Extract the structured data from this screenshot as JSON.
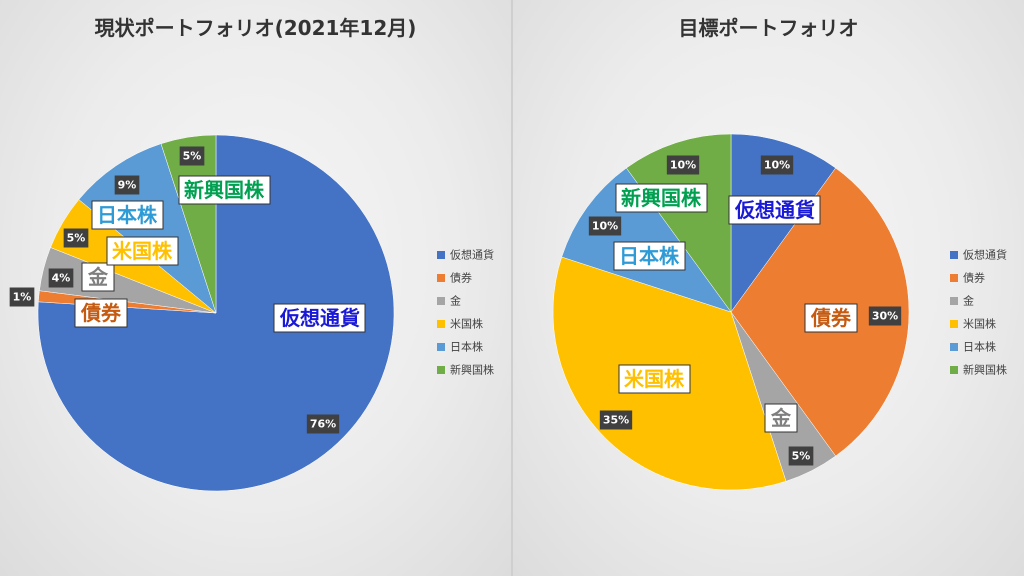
{
  "colors": {
    "crypto": "#4472c4",
    "bonds": "#ed7d31",
    "gold": "#a5a5a5",
    "us_stocks": "#ffc000",
    "jp_stocks": "#5b9bd5",
    "em_stocks": "#70ad47"
  },
  "chart_data": [
    {
      "type": "pie",
      "title": "現状ポートフォリオ(2021年12月)",
      "categories": [
        "仮想通貨",
        "債券",
        "金",
        "米国株",
        "日本株",
        "新興国株"
      ],
      "values": [
        76,
        1,
        4,
        5,
        9,
        5
      ],
      "value_labels": [
        "76%",
        "1%",
        "4%",
        "5%",
        "9%",
        "5%"
      ],
      "legend_position": "right"
    },
    {
      "type": "pie",
      "title": "目標ポートフォリオ",
      "categories": [
        "仮想通貨",
        "債券",
        "金",
        "米国株",
        "日本株",
        "新興国株"
      ],
      "values": [
        10,
        30,
        5,
        35,
        10,
        10
      ],
      "value_labels": [
        "10%",
        "30%",
        "5%",
        "35%",
        "10%",
        "10%"
      ],
      "legend_position": "right"
    }
  ]
}
